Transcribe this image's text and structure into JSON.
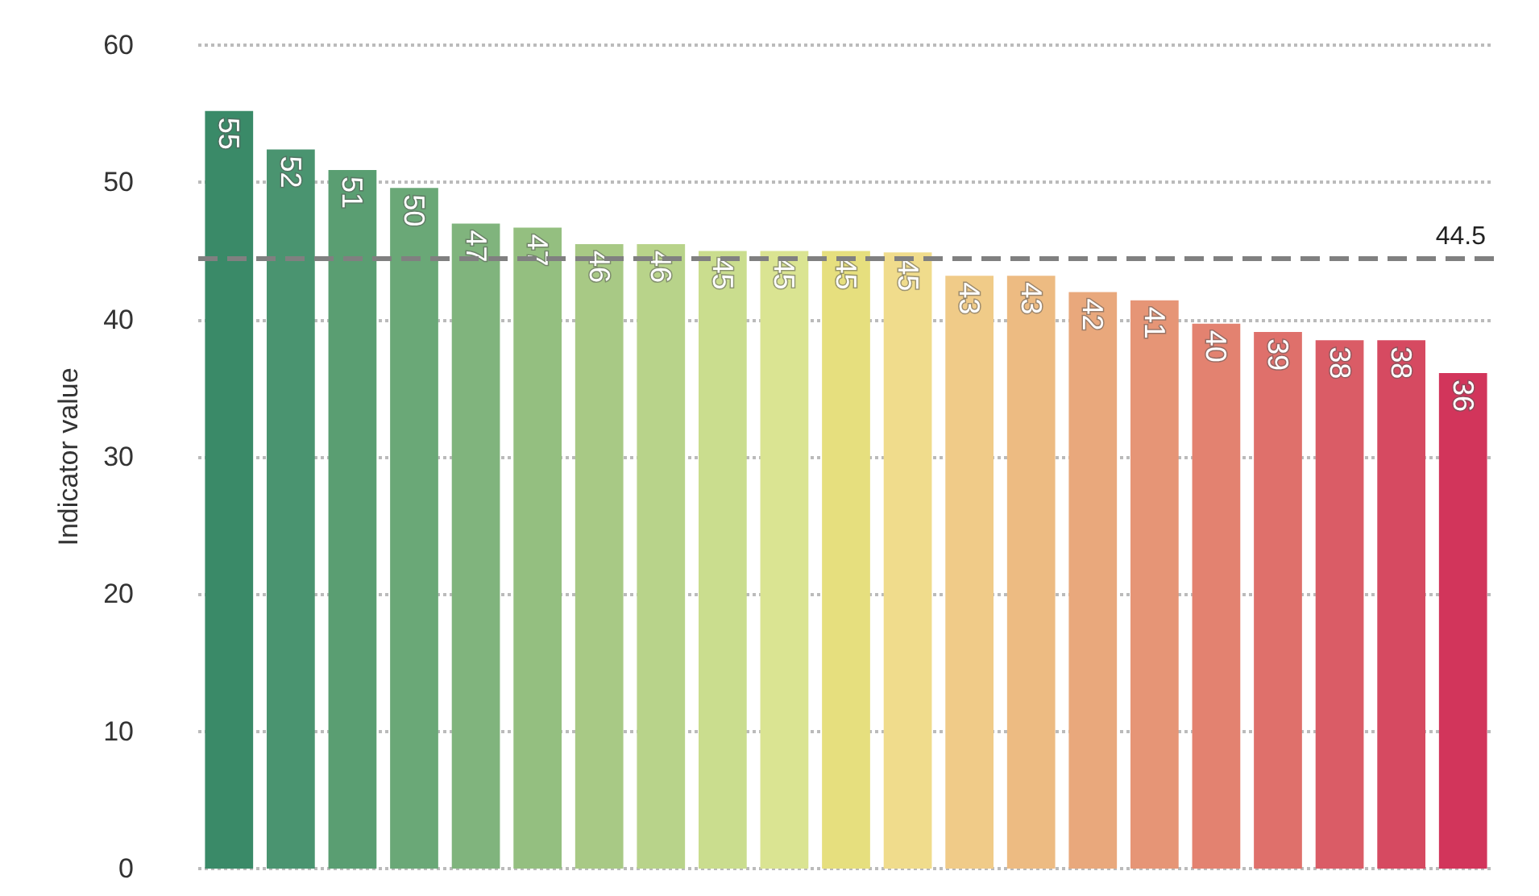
{
  "chart_data": {
    "type": "bar",
    "ylabel": "Indicator value",
    "categories": [
      null,
      null,
      null,
      null,
      null,
      null,
      null,
      null,
      null,
      null,
      null,
      null,
      null,
      null,
      null,
      null,
      null,
      null,
      null,
      null,
      null
    ],
    "values": [
      55.2,
      52.4,
      50.9,
      49.6,
      47.0,
      46.7,
      45.5,
      45.5,
      45.0,
      45.0,
      45.0,
      44.9,
      43.2,
      43.2,
      42.0,
      41.4,
      39.7,
      39.1,
      38.5,
      38.5,
      36.1
    ],
    "value_labels": [
      "55",
      "52",
      "51",
      "50",
      "47",
      "47",
      "46",
      "46",
      "45",
      "45",
      "45",
      "45",
      "43",
      "43",
      "42",
      "41",
      "40",
      "39",
      "38",
      "38",
      "36"
    ],
    "colors": [
      "#3a8a68",
      "#4a9470",
      "#5a9e72",
      "#6aa877",
      "#80b47d",
      "#94bf80",
      "#a8c985",
      "#b8d38a",
      "#cadd8e",
      "#dae492",
      "#e6df7e",
      "#f0dc8c",
      "#f0cb88",
      "#edbb82",
      "#e9a87c",
      "#e69576",
      "#e38270",
      "#df706b",
      "#da5c66",
      "#d64a61",
      "#d2355b"
    ],
    "ylim": [
      0,
      60
    ],
    "yticks": [
      0,
      10,
      20,
      30,
      40,
      50,
      60
    ],
    "grid": "y",
    "ref_lines": [
      {
        "axis": "y",
        "value": 44.5,
        "label": "44.5",
        "color": "#808080",
        "line_style": "dashed"
      }
    ]
  }
}
